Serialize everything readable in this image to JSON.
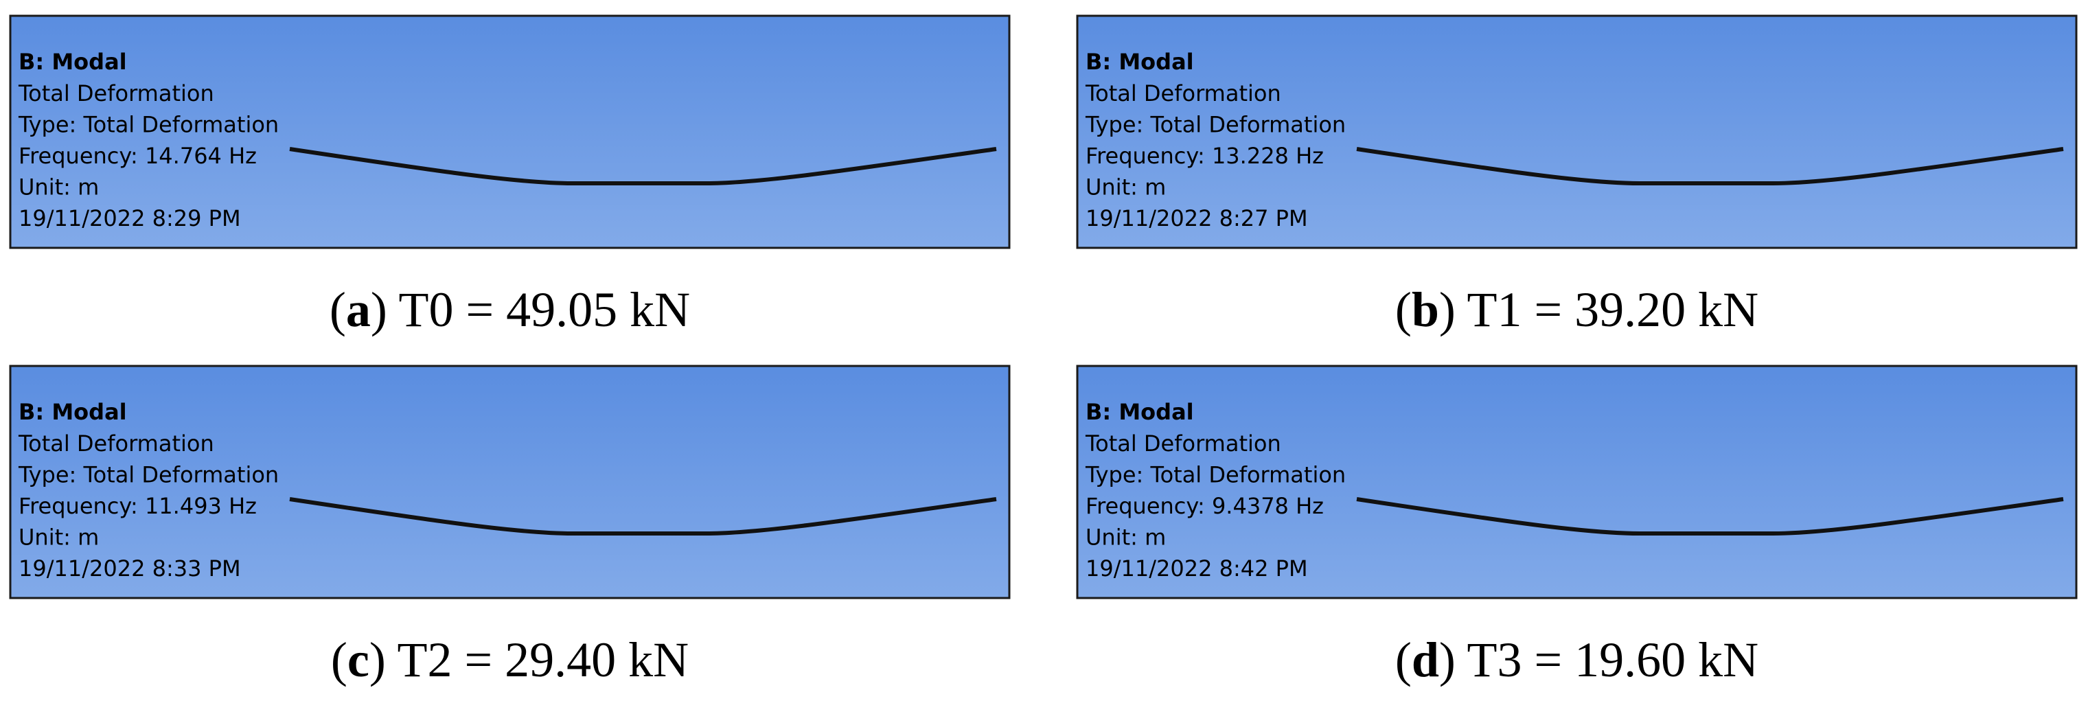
{
  "panels": [
    {
      "title": "B: Modal",
      "lines": [
        "Total Deformation",
        "Type: Total Deformation",
        "Frequency: 14.764 Hz",
        "Unit: m",
        "19/11/2022 8:29 PM"
      ],
      "caption": {
        "open": "(",
        "letter": "a",
        "text": ") T0 = 49.05 kN"
      }
    },
    {
      "title": "B: Modal",
      "lines": [
        "Total Deformation",
        "Type: Total Deformation",
        "Frequency: 13.228 Hz",
        "Unit: m",
        "19/11/2022 8:27 PM"
      ],
      "caption": {
        "open": "(",
        "letter": "b",
        "text": ") T1 = 39.20 kN"
      }
    },
    {
      "title": "B: Modal",
      "lines": [
        "Total Deformation",
        "Type: Total Deformation",
        "Frequency: 11.493 Hz",
        "Unit: m",
        "19/11/2022 8:33 PM"
      ],
      "caption": {
        "open": "(",
        "letter": "c",
        "text": ") T2 = 29.40 kN"
      }
    },
    {
      "title": "B: Modal",
      "lines": [
        "Total Deformation",
        "Type: Total Deformation",
        "Frequency: 9.4378 Hz",
        "Unit: m",
        "19/11/2022 8:42 PM"
      ],
      "caption": {
        "open": "(",
        "letter": "d",
        "text": ") T3 = 19.60 kN"
      }
    }
  ]
}
